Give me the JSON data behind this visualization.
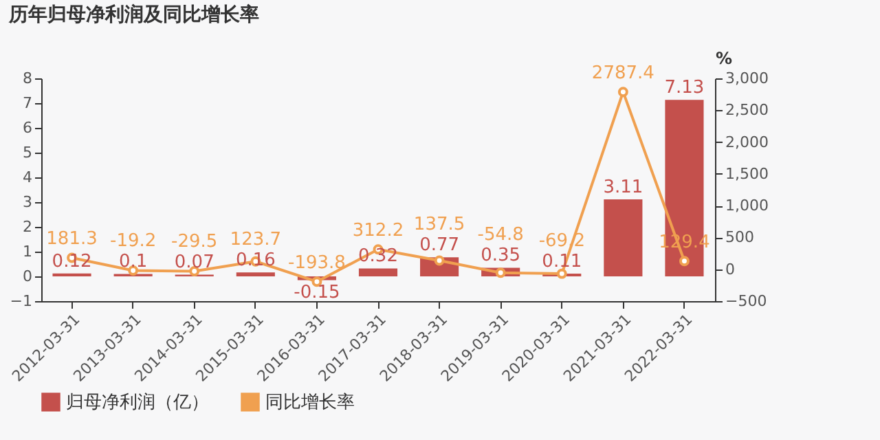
{
  "chart_data": {
    "type": "bar",
    "title": "历年归母净利润及同比增长率",
    "categories": [
      "2012-03-31",
      "2013-03-31",
      "2014-03-31",
      "2015-03-31",
      "2016-03-31",
      "2017-03-31",
      "2018-03-31",
      "2019-03-31",
      "2020-03-31",
      "2021-03-31",
      "2022-03-31"
    ],
    "series": [
      {
        "name": "归母净利润（亿）",
        "color": "#c4504c",
        "values": [
          0.12,
          0.1,
          0.07,
          0.16,
          -0.15,
          0.32,
          0.77,
          0.35,
          0.11,
          3.11,
          7.13
        ]
      },
      {
        "name": "同比增长率",
        "type": "line",
        "axis": "y2",
        "color": "#f0a050",
        "values": [
          181.3,
          -19.2,
          -29.5,
          123.7,
          -193.8,
          312.2,
          137.5,
          -54.8,
          -69.2,
          2787.4,
          129.4
        ]
      }
    ],
    "ylim": [
      -1,
      8
    ],
    "yticks": [
      -1,
      0,
      1,
      2,
      3,
      4,
      5,
      6,
      7,
      8
    ],
    "y2label": "%",
    "y2lim": [
      -500,
      3000
    ],
    "y2ticks": [
      -500,
      0,
      500,
      {
        "value": 1000,
        "label": "1,000"
      },
      {
        "value": 1500,
        "label": "1,500"
      },
      {
        "value": 2000,
        "label": "2,000"
      },
      {
        "value": 2500,
        "label": "2,500"
      },
      {
        "value": 3000,
        "label": "3,000"
      }
    ],
    "data_labels": true,
    "legend": "bottom",
    "marker": "circle",
    "grid": false
  }
}
